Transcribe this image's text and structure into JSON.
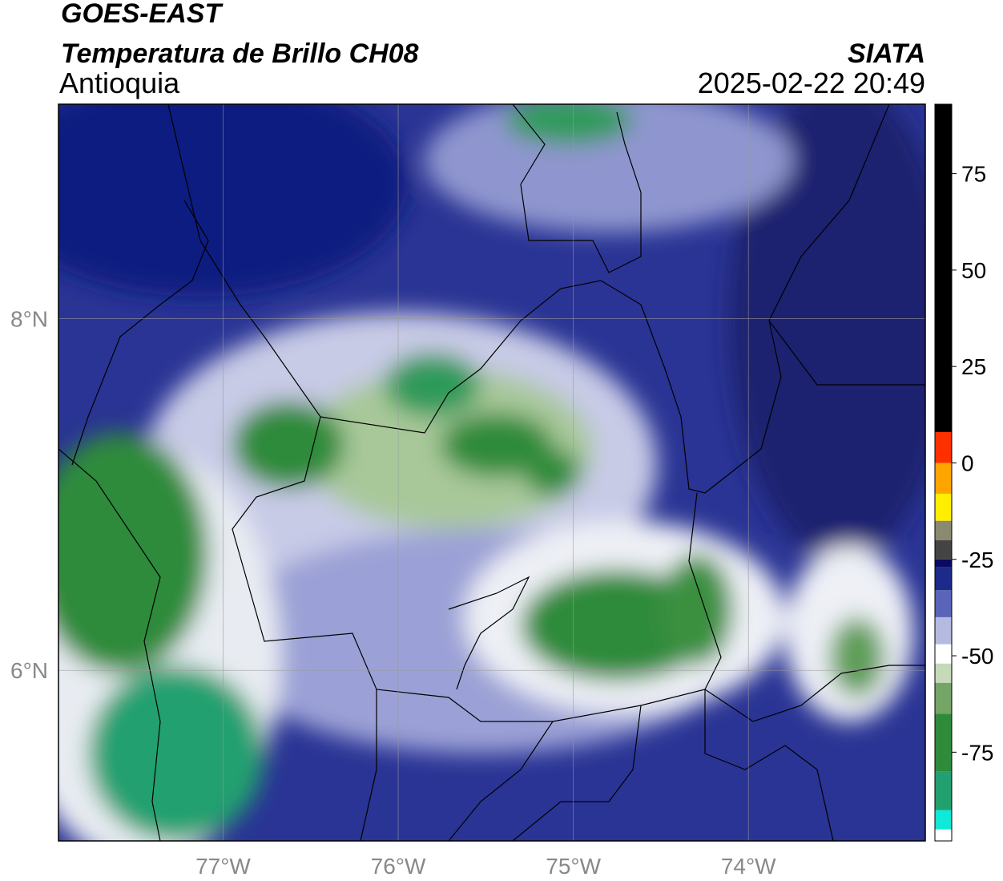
{
  "map": {
    "title": "GOES-EAST",
    "subtitle": "Temperatura de Brillo CH08",
    "region": "Antioquia",
    "source": "SIATA",
    "datetime": "2025-02-22 20:49",
    "lon_lim": [
      -77.94,
      -72.99
    ],
    "lat_lim": [
      5.03,
      9.22
    ],
    "lon_ticks": [
      {
        "value": -77,
        "label": "77°W"
      },
      {
        "value": -76,
        "label": "76°W"
      },
      {
        "value": -75,
        "label": "75°W"
      },
      {
        "value": -74,
        "label": "74°W"
      }
    ],
    "lat_ticks": [
      {
        "value": 8,
        "label": "8°N"
      },
      {
        "value": 6,
        "label": "6°N"
      }
    ],
    "colorbar": {
      "lim": [
        -98,
        93
      ],
      "ticks": [
        75,
        50,
        25,
        0,
        -25,
        -50,
        -75
      ],
      "segments": [
        {
          "from": -98,
          "to": -95,
          "color": "#ffffff"
        },
        {
          "from": -95,
          "to": -90,
          "color": "#10e8d8"
        },
        {
          "from": -90,
          "to": -80,
          "color": "#23a070"
        },
        {
          "from": -80,
          "to": -65,
          "color": "#2e8b3a"
        },
        {
          "from": -65,
          "to": -57,
          "color": "#74a466"
        },
        {
          "from": -57,
          "to": -52,
          "color": "#c4dab8"
        },
        {
          "from": -52,
          "to": -47,
          "color": "#ffffff"
        },
        {
          "from": -47,
          "to": -40,
          "color": "#b6bae0"
        },
        {
          "from": -40,
          "to": -33,
          "color": "#5a64b8"
        },
        {
          "from": -33,
          "to": -27,
          "color": "#1c2a8a"
        },
        {
          "from": -27,
          "to": -25,
          "color": "#0a0a60"
        },
        {
          "from": -25,
          "to": -20,
          "color": "#444444"
        },
        {
          "from": -20,
          "to": -15,
          "color": "#8a8a70"
        },
        {
          "from": -15,
          "to": -8,
          "color": "#ffee00"
        },
        {
          "from": -8,
          "to": 0,
          "color": "#ffa500"
        },
        {
          "from": 0,
          "to": 8,
          "color": "#ff3000"
        },
        {
          "from": 8,
          "to": 93,
          "color": "#000000"
        }
      ]
    }
  }
}
